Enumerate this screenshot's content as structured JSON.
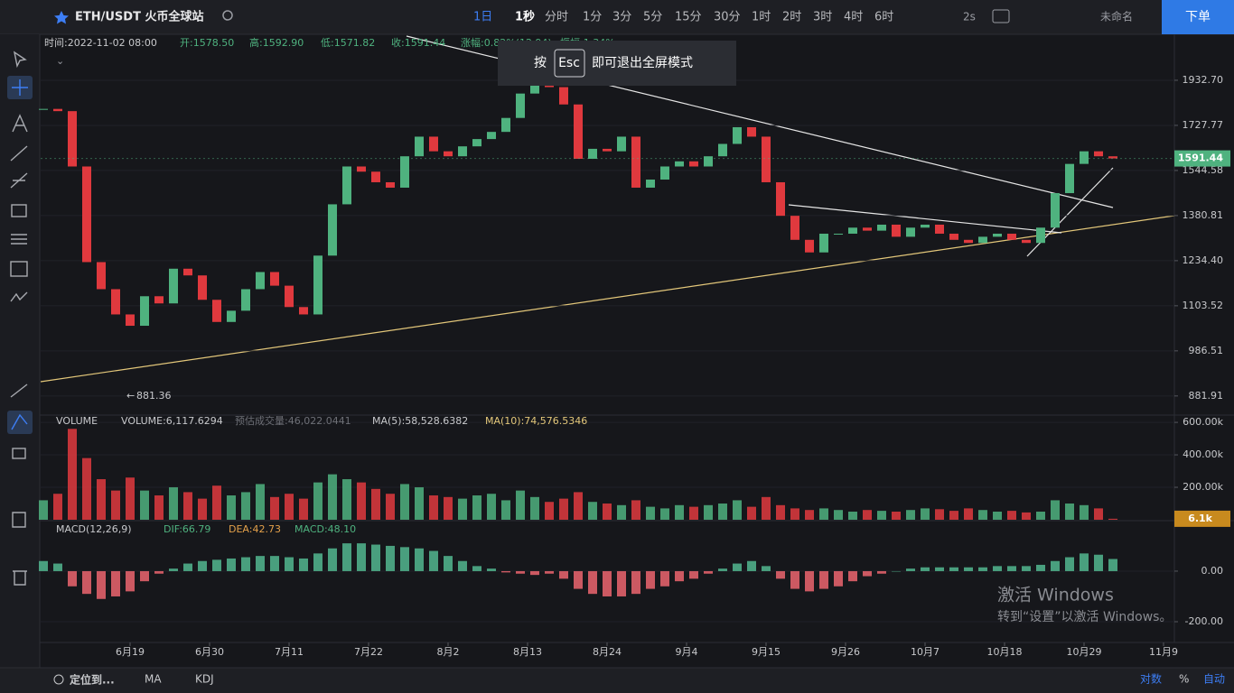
{
  "toolbar": {
    "symbol": "ETH/USDT 火币全球站",
    "intervals": [
      "1日",
      "1秒",
      "分时",
      "1分",
      "3分",
      "5分",
      "15分",
      "30分",
      "1时",
      "2时",
      "3时",
      "4时",
      "6时"
    ],
    "refresh": "2s",
    "layout_name": "未命名",
    "order_button": "下单"
  },
  "fullscreen_hint": {
    "prefix": "按",
    "key": "Esc",
    "suffix": "即可退出全屏模式"
  },
  "chart_data": [
    {
      "type": "candlestick",
      "info": [
        "时间:2022-11-02 08:00",
        "开:1578.50",
        "高:1592.90",
        "低:1571.82",
        "收:1591.44",
        "涨幅:0.82%(12.94)",
        "振幅:1.34%"
      ],
      "values": [
        1800,
        1790,
        1560,
        1230,
        1150,
        1080,
        1050,
        1130,
        1110,
        1210,
        1190,
        1120,
        1060,
        1090,
        1150,
        1200,
        1160,
        1100,
        1080,
        1250,
        1420,
        1560,
        1540,
        1500,
        1480,
        1600,
        1680,
        1620,
        1600,
        1640,
        1670,
        1700,
        1760,
        1870,
        1950,
        1900,
        1820,
        1590,
        1630,
        1620,
        1680,
        1480,
        1510,
        1560,
        1580,
        1560,
        1600,
        1650,
        1720,
        1680,
        1500,
        1380,
        1300,
        1260,
        1320,
        1320,
        1340,
        1330,
        1350,
        1310,
        1340,
        1350,
        1320,
        1300,
        1290,
        1310,
        1320,
        1300,
        1290,
        1340,
        1460,
        1570,
        1620,
        1600,
        1591.44
      ],
      "colors": {
        "up": "#4fb27f",
        "down": "#e0393e"
      },
      "log": true,
      "ylim": [
        841,
        2157
      ],
      "yticks": [
        881.91,
        986.51,
        1103.52,
        {
          "value": 1234.4,
          "label": "1234.40"
        },
        1380.81,
        1544.58,
        1727.77,
        {
          "value": 1932.7,
          "label": "1932.70"
        }
      ],
      "last_price": {
        "value": 1591.44,
        "label": "1591.44"
      },
      "low_label": "881.36"
    },
    {
      "type": "bar",
      "legend": [
        "VOLUME",
        "VOLUME:6,117.6294",
        "预估成交量:46,022.0441",
        "MA(5):58,528.6382",
        "MA(10):74,576.5346"
      ],
      "values": [
        120000,
        160000,
        560000,
        380000,
        250000,
        180000,
        260000,
        180000,
        150000,
        200000,
        170000,
        130000,
        210000,
        150000,
        170000,
        220000,
        140000,
        160000,
        130000,
        230000,
        280000,
        250000,
        230000,
        190000,
        160000,
        220000,
        200000,
        150000,
        140000,
        130000,
        150000,
        160000,
        120000,
        180000,
        140000,
        110000,
        130000,
        170000,
        110000,
        100000,
        90000,
        120000,
        80000,
        70000,
        90000,
        80000,
        90000,
        100000,
        120000,
        80000,
        140000,
        90000,
        70000,
        60000,
        70000,
        60000,
        50000,
        60000,
        55000,
        50000,
        60000,
        70000,
        65000,
        55000,
        70000,
        60000,
        50000,
        55000,
        45000,
        50000,
        120000,
        100000,
        90000,
        70000,
        6117.6294
      ],
      "ylim": [
        0,
        645000
      ],
      "yticks": [
        {
          "value": 200000,
          "label": "200.00k"
        },
        {
          "value": 400000,
          "label": "400.00k"
        },
        {
          "value": 600000,
          "label": "600.00k"
        }
      ],
      "last_value": {
        "value": 6117.6294,
        "label": "6.1k"
      }
    },
    {
      "type": "bar",
      "legend": [
        "MACD(12,26,9)",
        "DIF:66.79",
        "DEA:42.73",
        "MACD:48.10"
      ],
      "values": [
        40,
        30,
        -60,
        -90,
        -110,
        -100,
        -80,
        -40,
        -10,
        10,
        30,
        40,
        45,
        50,
        55,
        60,
        60,
        55,
        50,
        70,
        90,
        110,
        110,
        105,
        100,
        95,
        90,
        80,
        60,
        40,
        20,
        10,
        -5,
        -10,
        -15,
        -10,
        -30,
        -70,
        -90,
        -100,
        -100,
        -90,
        -70,
        -60,
        -40,
        -30,
        -10,
        10,
        30,
        40,
        20,
        -30,
        -70,
        -80,
        -70,
        -60,
        -40,
        -20,
        -10,
        0,
        10,
        15,
        15,
        15,
        15,
        15,
        20,
        20,
        20,
        25,
        40,
        55,
        70,
        65,
        48.1
      ],
      "colors": {
        "up": "#4fae8a",
        "down": "#e0616a"
      },
      "ylim": [
        -275,
        189
      ],
      "yticks": [
        {
          "value": -200,
          "label": "-200.00"
        },
        {
          "value": 0,
          "label": "0.00"
        }
      ],
      "x_labels": [
        "6月19",
        "6月30",
        "7月11",
        "7月22",
        "8月2",
        "8月13",
        "8月24",
        "9月4",
        "9月15",
        "9月26",
        "10月7",
        "10月18",
        "10月29",
        "11月9"
      ]
    }
  ],
  "bottom_bar": {
    "locate": "定位到...",
    "indicators": [
      "MA",
      "KDJ"
    ],
    "options": [
      "对数",
      "%",
      "自动"
    ]
  },
  "watermark": {
    "title": "激活 Windows",
    "subtitle": "转到“设置”以激活 Windows。"
  }
}
